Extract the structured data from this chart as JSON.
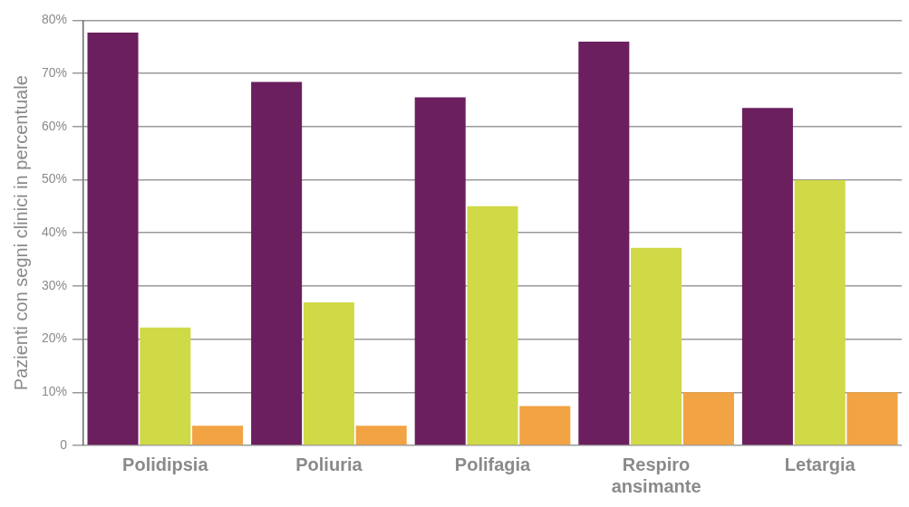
{
  "chart_data": {
    "type": "bar",
    "ylabel": "Pazienti con segni clinici in percentuale",
    "categories": [
      "Polidipsia",
      "Poliuria",
      "Polifagia",
      "Respiro ansimante",
      "Letargia"
    ],
    "series": [
      {
        "color": "#6b1f5e",
        "values": [
          77.7,
          68.4,
          65.5,
          76.0,
          63.5
        ]
      },
      {
        "color": "#d0d946",
        "values": [
          22.2,
          26.9,
          45.0,
          37.2,
          49.9
        ]
      },
      {
        "color": "#f2a343",
        "values": [
          3.7,
          3.7,
          7.4,
          10.0,
          10.0
        ]
      }
    ],
    "ylim": [
      0,
      80
    ],
    "yticks": [
      {
        "value": 0,
        "label": "0"
      },
      {
        "value": 10,
        "label": "10%"
      },
      {
        "value": 20,
        "label": "20%"
      },
      {
        "value": 30,
        "label": "30%"
      },
      {
        "value": 40,
        "label": "40%"
      },
      {
        "value": 50,
        "label": "50%"
      },
      {
        "value": 60,
        "label": "60%"
      },
      {
        "value": 70,
        "label": "70%"
      },
      {
        "value": 80,
        "label": "80%"
      }
    ],
    "grid": "y",
    "legend": false
  }
}
